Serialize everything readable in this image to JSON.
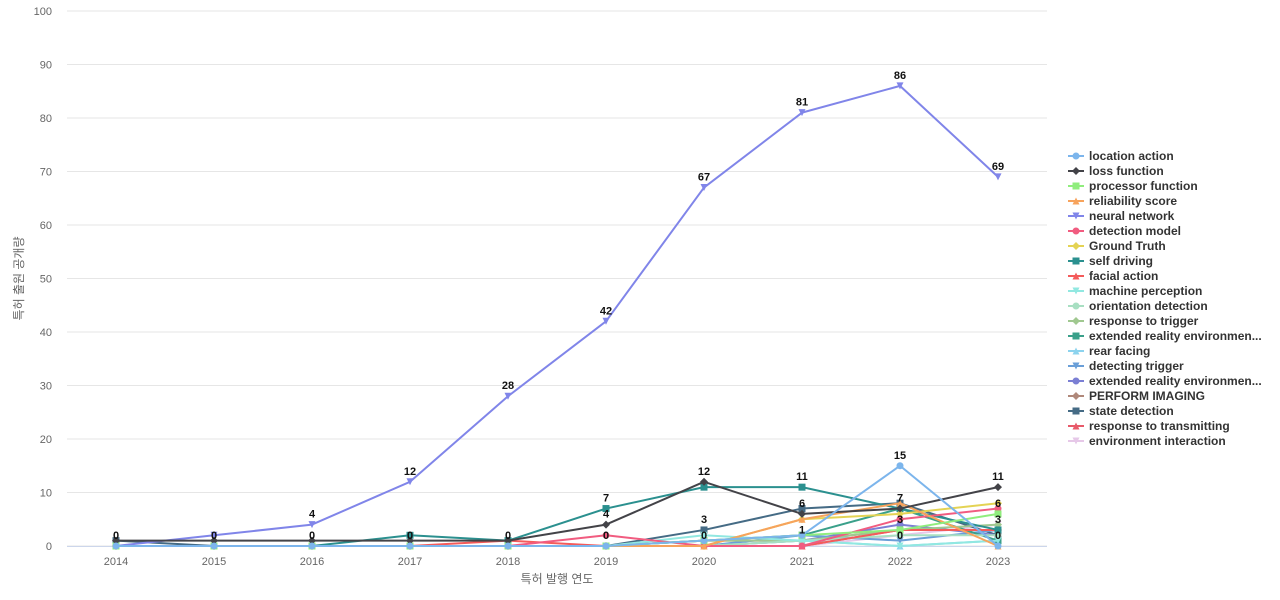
{
  "chart_data": {
    "type": "line",
    "title": "",
    "xlabel": "특허 발행 연도",
    "ylabel": "특허 출원 공개량",
    "ylim": [
      0,
      100
    ],
    "yticks": [
      0,
      10,
      20,
      30,
      40,
      50,
      60,
      70,
      80,
      90,
      100
    ],
    "categories": [
      "2014",
      "2015",
      "2016",
      "2017",
      "2018",
      "2019",
      "2020",
      "2021",
      "2022",
      "2023"
    ],
    "legend_position": "right",
    "grid": true,
    "series": [
      {
        "name": "location action",
        "color": "#7cb5ec",
        "marker": "circle",
        "values": [
          0,
          0,
          0,
          0,
          0,
          0,
          1,
          2,
          15,
          0
        ]
      },
      {
        "name": "loss function",
        "color": "#434348",
        "marker": "diamond",
        "values": [
          1,
          1,
          1,
          1,
          1,
          4,
          12,
          6,
          7,
          11
        ]
      },
      {
        "name": "processor function",
        "color": "#90ed7d",
        "marker": "square",
        "values": [
          0,
          0,
          0,
          0,
          0,
          0,
          1,
          2,
          3,
          6
        ]
      },
      {
        "name": "reliability score",
        "color": "#f7a35c",
        "marker": "triangle",
        "values": [
          0,
          0,
          0,
          0,
          0,
          0,
          0,
          5,
          8,
          0
        ]
      },
      {
        "name": "neural network",
        "color": "#8085e9",
        "marker": "triangle-down",
        "values": [
          0,
          2,
          4,
          12,
          28,
          42,
          67,
          81,
          86,
          69
        ]
      },
      {
        "name": "detection model",
        "color": "#f15c80",
        "marker": "circle",
        "values": [
          0,
          0,
          0,
          0,
          0,
          2,
          0,
          0,
          5,
          7
        ]
      },
      {
        "name": "Ground Truth",
        "color": "#e4d354",
        "marker": "diamond",
        "values": [
          0,
          0,
          0,
          0,
          0,
          0,
          0,
          5,
          6,
          8
        ]
      },
      {
        "name": "self driving",
        "color": "#2b908f",
        "marker": "square",
        "values": [
          0,
          0,
          0,
          2,
          1,
          7,
          11,
          11,
          7,
          3
        ]
      },
      {
        "name": "facial action",
        "color": "#f45b5b",
        "marker": "triangle",
        "values": [
          0,
          0,
          0,
          0,
          1,
          0,
          0,
          0,
          3,
          3
        ]
      },
      {
        "name": "machine perception",
        "color": "#91e8e1",
        "marker": "triangle-down",
        "values": [
          0,
          0,
          0,
          0,
          0,
          0,
          2,
          1,
          0,
          1
        ]
      },
      {
        "name": "orientation detection",
        "color": "#a8dfc2",
        "marker": "circle",
        "values": [
          0,
          0,
          0,
          0,
          0,
          0,
          0,
          1,
          2,
          2
        ]
      },
      {
        "name": "response to trigger",
        "color": "#a0c890",
        "marker": "diamond",
        "values": [
          0,
          0,
          0,
          0,
          0,
          0,
          1,
          1,
          3,
          4
        ]
      },
      {
        "name": "extended reality environmen...",
        "color": "#3aa08a",
        "marker": "square",
        "values": [
          0,
          0,
          0,
          0,
          0,
          0,
          1,
          2,
          7,
          1
        ]
      },
      {
        "name": "rear facing",
        "color": "#8cd3ee",
        "marker": "triangle",
        "values": [
          0,
          0,
          0,
          0,
          0,
          0,
          0,
          1,
          0,
          1
        ]
      },
      {
        "name": "detecting trigger",
        "color": "#6a9fd8",
        "marker": "triangle-down",
        "values": [
          0,
          0,
          0,
          0,
          0,
          0,
          0,
          2,
          1,
          3
        ]
      },
      {
        "name": "extended reality environmen...",
        "color": "#7b7fd4",
        "marker": "circle",
        "values": [
          0,
          0,
          0,
          0,
          0,
          0,
          0,
          1,
          4,
          2
        ]
      },
      {
        "name": "PERFORM IMAGING",
        "color": "#b0887a",
        "marker": "diamond",
        "values": [
          0,
          0,
          0,
          0,
          0,
          0,
          1,
          1,
          3,
          3
        ]
      },
      {
        "name": "state detection",
        "color": "#456b85",
        "marker": "square",
        "values": [
          1,
          0,
          0,
          0,
          0,
          0,
          3,
          7,
          8,
          2
        ]
      },
      {
        "name": "response to transmitting",
        "color": "#e85a6a",
        "marker": "triangle",
        "values": [
          0,
          0,
          0,
          0,
          0,
          0,
          0,
          0,
          3,
          3
        ]
      },
      {
        "name": "environment interaction",
        "color": "#e6c8e8",
        "marker": "triangle-down",
        "values": [
          0,
          0,
          0,
          0,
          0,
          0,
          0,
          0,
          2,
          4
        ]
      }
    ],
    "data_labels": [
      {
        "x": "2014",
        "value": 0
      },
      {
        "x": "2015",
        "value": 0
      },
      {
        "x": "2016",
        "value": 0
      },
      {
        "x": "2017",
        "value": 0
      },
      {
        "x": "2018",
        "value": 0
      },
      {
        "x": "2019",
        "value": 0
      },
      {
        "x": "2020",
        "value": 0
      },
      {
        "x": "2022",
        "value": 0
      },
      {
        "x": "2023",
        "value": 0
      },
      {
        "x": "2016",
        "value": 4
      },
      {
        "x": "2017",
        "value": 12
      },
      {
        "x": "2018",
        "value": 28
      },
      {
        "x": "2019",
        "value": 42
      },
      {
        "x": "2020",
        "value": 67
      },
      {
        "x": "2021",
        "value": 81
      },
      {
        "x": "2022",
        "value": 86
      },
      {
        "x": "2023",
        "value": 69
      },
      {
        "x": "2019",
        "value": 4
      },
      {
        "x": "2019",
        "value": 7
      },
      {
        "x": "2020",
        "value": 12
      },
      {
        "x": "2020",
        "value": 3
      },
      {
        "x": "2021",
        "value": 11
      },
      {
        "x": "2021",
        "value": 6
      },
      {
        "x": "2021",
        "value": 1
      },
      {
        "x": "2022",
        "value": 15
      },
      {
        "x": "2022",
        "value": 7
      },
      {
        "x": "2022",
        "value": 3
      },
      {
        "x": "2023",
        "value": 11
      },
      {
        "x": "2023",
        "value": 6
      },
      {
        "x": "2023",
        "value": 3
      }
    ]
  }
}
